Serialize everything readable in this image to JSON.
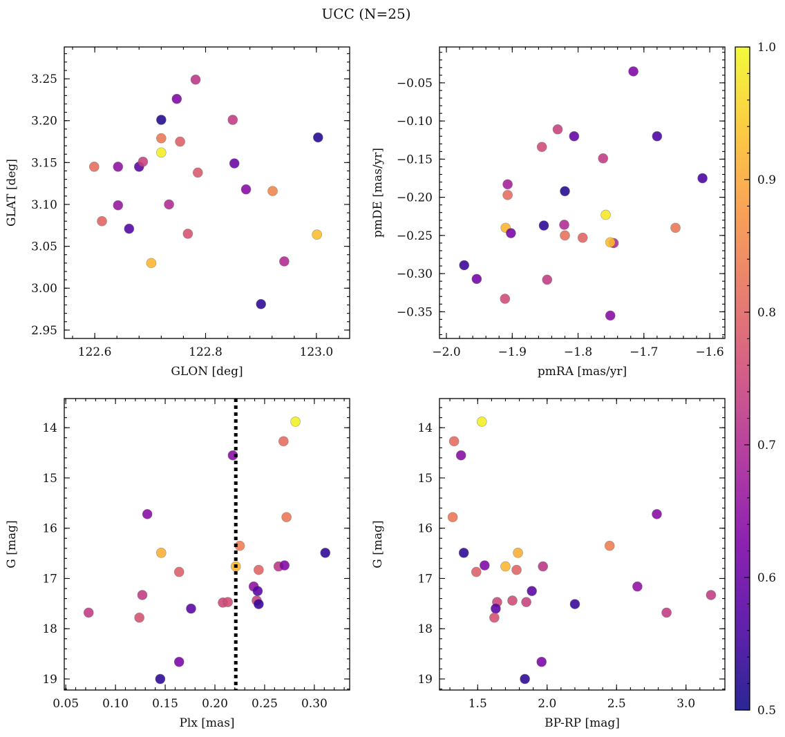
{
  "title": "UCC (N=25)",
  "colorbar": {
    "min": 0.5,
    "max": 1.0,
    "ticks": [
      0.5,
      0.6,
      0.7,
      0.8,
      0.9,
      1.0
    ],
    "tick_labels": [
      "0.5",
      "0.6",
      "0.7",
      "0.8",
      "0.9",
      "1.0"
    ],
    "colormap": "plasma"
  },
  "chart_data": [
    {
      "type": "scatter",
      "xlabel": "GLON [deg]",
      "ylabel": "GLAT [deg]",
      "xlim": [
        122.545,
        123.06
      ],
      "ylim": [
        2.94,
        3.288
      ],
      "xticks": [
        122.6,
        122.8,
        123.0
      ],
      "xtick_labels": [
        "122.6",
        "122.8",
        "123.0"
      ],
      "yticks": [
        2.95,
        3.0,
        3.05,
        3.1,
        3.15,
        3.2,
        3.25
      ],
      "ytick_labels": [
        "2.95",
        "3.00",
        "3.05",
        "3.10",
        "3.15",
        "3.20",
        "3.25"
      ],
      "yinvert": false,
      "points": [
        {
          "x": 122.72,
          "y": 3.201,
          "c": 0.52
        },
        {
          "x": 122.748,
          "y": 3.226,
          "c": 0.63
        },
        {
          "x": 122.782,
          "y": 3.249,
          "c": 0.72
        },
        {
          "x": 122.849,
          "y": 3.201,
          "c": 0.73
        },
        {
          "x": 123.003,
          "y": 3.18,
          "c": 0.52
        },
        {
          "x": 122.72,
          "y": 3.179,
          "c": 0.83
        },
        {
          "x": 122.754,
          "y": 3.175,
          "c": 0.79
        },
        {
          "x": 122.72,
          "y": 3.162,
          "c": 0.99
        },
        {
          "x": 122.599,
          "y": 3.145,
          "c": 0.81
        },
        {
          "x": 122.642,
          "y": 3.145,
          "c": 0.65
        },
        {
          "x": 122.68,
          "y": 3.145,
          "c": 0.58
        },
        {
          "x": 122.687,
          "y": 3.151,
          "c": 0.74
        },
        {
          "x": 122.852,
          "y": 3.149,
          "c": 0.6
        },
        {
          "x": 122.786,
          "y": 3.138,
          "c": 0.78
        },
        {
          "x": 122.873,
          "y": 3.118,
          "c": 0.64
        },
        {
          "x": 122.921,
          "y": 3.116,
          "c": 0.85
        },
        {
          "x": 122.642,
          "y": 3.099,
          "c": 0.66
        },
        {
          "x": 122.734,
          "y": 3.1,
          "c": 0.7
        },
        {
          "x": 122.613,
          "y": 3.08,
          "c": 0.8
        },
        {
          "x": 122.662,
          "y": 3.071,
          "c": 0.57
        },
        {
          "x": 122.768,
          "y": 3.065,
          "c": 0.77
        },
        {
          "x": 123.001,
          "y": 3.064,
          "c": 0.93
        },
        {
          "x": 122.702,
          "y": 3.03,
          "c": 0.92
        },
        {
          "x": 122.942,
          "y": 3.032,
          "c": 0.7
        },
        {
          "x": 122.9,
          "y": 2.981,
          "c": 0.53
        }
      ]
    },
    {
      "type": "scatter",
      "xlabel": "pmRA [mas/yr]",
      "ylabel": "pmDE [mas/yr]",
      "xlim": [
        -2.0105,
        -1.577
      ],
      "ylim": [
        -0.385,
        -0.003
      ],
      "xticks": [
        -2.0,
        -1.9,
        -1.8,
        -1.7,
        -1.6
      ],
      "xtick_labels": [
        "−2.0",
        "−1.9",
        "−1.8",
        "−1.7",
        "−1.6"
      ],
      "yticks": [
        -0.35,
        -0.3,
        -0.25,
        -0.2,
        -0.15,
        -0.1,
        -0.05
      ],
      "ytick_labels": [
        "−0.35",
        "−0.30",
        "−0.25",
        "−0.20",
        "−0.15",
        "−0.10",
        "−0.05"
      ],
      "yinvert": false,
      "points": [
        {
          "x": -1.716,
          "y": -0.035,
          "c": 0.63
        },
        {
          "x": -1.831,
          "y": -0.111,
          "c": 0.74
        },
        {
          "x": -1.806,
          "y": -0.12,
          "c": 0.59
        },
        {
          "x": -1.68,
          "y": -0.12,
          "c": 0.56
        },
        {
          "x": -1.855,
          "y": -0.134,
          "c": 0.76
        },
        {
          "x": -1.762,
          "y": -0.149,
          "c": 0.73
        },
        {
          "x": -1.611,
          "y": -0.175,
          "c": 0.56
        },
        {
          "x": -1.907,
          "y": -0.183,
          "c": 0.68
        },
        {
          "x": -1.82,
          "y": -0.192,
          "c": 0.52
        },
        {
          "x": -1.907,
          "y": -0.197,
          "c": 0.81
        },
        {
          "x": -1.758,
          "y": -0.223,
          "c": 0.98
        },
        {
          "x": -1.852,
          "y": -0.237,
          "c": 0.53
        },
        {
          "x": -1.821,
          "y": -0.236,
          "c": 0.7
        },
        {
          "x": -1.91,
          "y": -0.24,
          "c": 0.92
        },
        {
          "x": -1.652,
          "y": -0.24,
          "c": 0.83
        },
        {
          "x": -1.902,
          "y": -0.247,
          "c": 0.62
        },
        {
          "x": -1.82,
          "y": -0.25,
          "c": 0.82
        },
        {
          "x": -1.793,
          "y": -0.253,
          "c": 0.8
        },
        {
          "x": -1.746,
          "y": -0.26,
          "c": 0.7
        },
        {
          "x": -1.751,
          "y": -0.259,
          "c": 0.93
        },
        {
          "x": -1.973,
          "y": -0.289,
          "c": 0.54
        },
        {
          "x": -1.954,
          "y": -0.307,
          "c": 0.61
        },
        {
          "x": -1.847,
          "y": -0.308,
          "c": 0.73
        },
        {
          "x": -1.911,
          "y": -0.333,
          "c": 0.76
        },
        {
          "x": -1.751,
          "y": -0.355,
          "c": 0.64
        }
      ]
    },
    {
      "type": "scatter",
      "xlabel": "Plx [mas]",
      "ylabel": "G [mag]",
      "xlim": [
        0.0485,
        0.3355
      ],
      "ylim": [
        19.22,
        13.42
      ],
      "xticks": [
        0.05,
        0.1,
        0.15,
        0.2,
        0.25,
        0.3
      ],
      "xtick_labels": [
        "0.05",
        "0.10",
        "0.15",
        "0.20",
        "0.25",
        "0.30"
      ],
      "yticks": [
        14,
        15,
        16,
        17,
        18,
        19
      ],
      "ytick_labels": [
        "14",
        "15",
        "16",
        "17",
        "18",
        "19"
      ],
      "yinvert": true,
      "vline": 0.221,
      "points": [
        {
          "x": 0.281,
          "y": 13.88,
          "c": 0.99
        },
        {
          "x": 0.269,
          "y": 14.27,
          "c": 0.81
        },
        {
          "x": 0.218,
          "y": 14.55,
          "c": 0.64
        },
        {
          "x": 0.132,
          "y": 15.72,
          "c": 0.64
        },
        {
          "x": 0.272,
          "y": 15.78,
          "c": 0.83
        },
        {
          "x": 0.146,
          "y": 16.49,
          "c": 0.91
        },
        {
          "x": 0.311,
          "y": 16.49,
          "c": 0.53
        },
        {
          "x": 0.225,
          "y": 16.35,
          "c": 0.84
        },
        {
          "x": 0.164,
          "y": 16.87,
          "c": 0.79
        },
        {
          "x": 0.221,
          "y": 16.76,
          "c": 0.92
        },
        {
          "x": 0.244,
          "y": 16.83,
          "c": 0.8
        },
        {
          "x": 0.264,
          "y": 16.76,
          "c": 0.72
        },
        {
          "x": 0.27,
          "y": 16.74,
          "c": 0.63
        },
        {
          "x": 0.127,
          "y": 17.33,
          "c": 0.73
        },
        {
          "x": 0.239,
          "y": 17.16,
          "c": 0.65
        },
        {
          "x": 0.243,
          "y": 17.25,
          "c": 0.58
        },
        {
          "x": 0.208,
          "y": 17.48,
          "c": 0.75
        },
        {
          "x": 0.213,
          "y": 17.47,
          "c": 0.76
        },
        {
          "x": 0.242,
          "y": 17.44,
          "c": 0.74
        },
        {
          "x": 0.244,
          "y": 17.51,
          "c": 0.54
        },
        {
          "x": 0.176,
          "y": 17.6,
          "c": 0.58
        },
        {
          "x": 0.073,
          "y": 17.68,
          "c": 0.73
        },
        {
          "x": 0.124,
          "y": 17.78,
          "c": 0.77
        },
        {
          "x": 0.164,
          "y": 18.66,
          "c": 0.62
        },
        {
          "x": 0.145,
          "y": 19.0,
          "c": 0.53
        }
      ]
    },
    {
      "type": "scatter",
      "xlabel": "BP-RP [mag]",
      "ylabel": "G [mag]",
      "xlim": [
        1.225,
        3.28
      ],
      "ylim": [
        19.22,
        13.42
      ],
      "xticks": [
        1.5,
        2.0,
        2.5,
        3.0
      ],
      "xtick_labels": [
        "1.5",
        "2.0",
        "2.5",
        "3.0"
      ],
      "yticks": [
        14,
        15,
        16,
        17,
        18,
        19
      ],
      "ytick_labels": [
        "14",
        "15",
        "16",
        "17",
        "18",
        "19"
      ],
      "yinvert": true,
      "points": [
        {
          "x": 1.53,
          "y": 13.88,
          "c": 0.99
        },
        {
          "x": 1.33,
          "y": 14.27,
          "c": 0.81
        },
        {
          "x": 1.38,
          "y": 14.55,
          "c": 0.64
        },
        {
          "x": 2.79,
          "y": 15.72,
          "c": 0.64
        },
        {
          "x": 1.32,
          "y": 15.78,
          "c": 0.83
        },
        {
          "x": 1.4,
          "y": 16.49,
          "c": 0.53
        },
        {
          "x": 1.79,
          "y": 16.49,
          "c": 0.91
        },
        {
          "x": 2.45,
          "y": 16.35,
          "c": 0.84
        },
        {
          "x": 1.49,
          "y": 16.87,
          "c": 0.79
        },
        {
          "x": 1.55,
          "y": 16.74,
          "c": 0.63
        },
        {
          "x": 1.7,
          "y": 16.76,
          "c": 0.92
        },
        {
          "x": 1.78,
          "y": 16.83,
          "c": 0.8
        },
        {
          "x": 1.97,
          "y": 16.76,
          "c": 0.72
        },
        {
          "x": 2.65,
          "y": 17.16,
          "c": 0.65
        },
        {
          "x": 1.89,
          "y": 17.25,
          "c": 0.58
        },
        {
          "x": 3.18,
          "y": 17.33,
          "c": 0.73
        },
        {
          "x": 1.64,
          "y": 17.47,
          "c": 0.75
        },
        {
          "x": 1.75,
          "y": 17.44,
          "c": 0.76
        },
        {
          "x": 1.85,
          "y": 17.47,
          "c": 0.74
        },
        {
          "x": 2.2,
          "y": 17.51,
          "c": 0.54
        },
        {
          "x": 1.63,
          "y": 17.6,
          "c": 0.58
        },
        {
          "x": 2.86,
          "y": 17.68,
          "c": 0.73
        },
        {
          "x": 1.62,
          "y": 17.78,
          "c": 0.77
        },
        {
          "x": 1.96,
          "y": 18.66,
          "c": 0.62
        },
        {
          "x": 1.84,
          "y": 19.0,
          "c": 0.53
        }
      ]
    }
  ]
}
